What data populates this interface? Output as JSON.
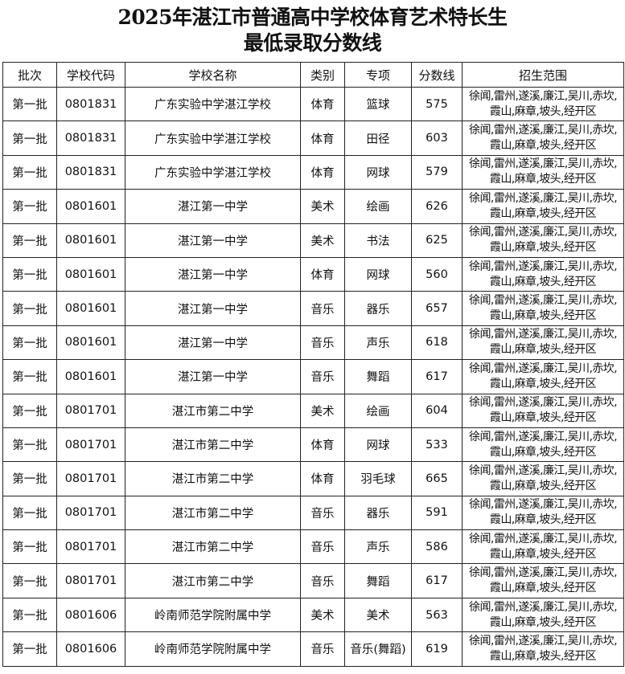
{
  "title_line1": "2025年湛江市普通高中学校体育艺术特长生",
  "title_line2": "最低录取分数线",
  "headers": [
    "批次",
    "学校代码",
    "学校名称",
    "类别",
    "专项",
    "分数线",
    "招生范围"
  ],
  "rows": [
    [
      "第一批",
      "0801831",
      "广东实验中学湛江学校",
      "体育",
      "篮球",
      "575",
      "徐闻,雷州,遂溪,廉江,吴川,赤坎,霞山,麻章,坡头,经开区"
    ],
    [
      "第一批",
      "0801831",
      "广东实验中学湛江学校",
      "体育",
      "田径",
      "603",
      "徐闻,雷州,遂溪,廉江,吴川,赤坎,霞山,麻章,坡头,经开区"
    ],
    [
      "第一批",
      "0801831",
      "广东实验中学湛江学校",
      "体育",
      "网球",
      "579",
      "徐闻,雷州,遂溪,廉江,吴川,赤坎,霞山,麻章,坡头,经开区"
    ],
    [
      "第一批",
      "0801601",
      "湛江第一中学",
      "美术",
      "绘画",
      "626",
      "徐闻,雷州,遂溪,廉江,吴川,赤坎,霞山,麻章,坡头,经开区"
    ],
    [
      "第一批",
      "0801601",
      "湛江第一中学",
      "美术",
      "书法",
      "625",
      "徐闻,雷州,遂溪,廉江,吴川,赤坎,霞山,麻章,坡头,经开区"
    ],
    [
      "第一批",
      "0801601",
      "湛江第一中学",
      "体育",
      "网球",
      "560",
      "徐闻,雷州,遂溪,廉江,吴川,赤坎,霞山,麻章,坡头,经开区"
    ],
    [
      "第一批",
      "0801601",
      "湛江第一中学",
      "音乐",
      "器乐",
      "657",
      "徐闻,雷州,遂溪,廉江,吴川,赤坎,霞山,麻章,坡头,经开区"
    ],
    [
      "第一批",
      "0801601",
      "湛江第一中学",
      "音乐",
      "声乐",
      "618",
      "徐闻,雷州,遂溪,廉江,吴川,赤坎,霞山,麻章,坡头,经开区"
    ],
    [
      "第一批",
      "0801601",
      "湛江第一中学",
      "音乐",
      "舞蹈",
      "617",
      "徐闻,雷州,遂溪,廉江,吴川,赤坎,霞山,麻章,坡头,经开区"
    ],
    [
      "第一批",
      "0801701",
      "湛江市第二中学",
      "美术",
      "绘画",
      "604",
      "徐闻,雷州,遂溪,廉江,吴川,赤坎,霞山,麻章,坡头,经开区"
    ],
    [
      "第一批",
      "0801701",
      "湛江市第二中学",
      "体育",
      "网球",
      "533",
      "徐闻,雷州,遂溪,廉江,吴川,赤坎,霞山,麻章,坡头,经开区"
    ],
    [
      "第一批",
      "0801701",
      "湛江市第二中学",
      "体育",
      "羽毛球",
      "665",
      "徐闻,雷州,遂溪,廉江,吴川,赤坎,霞山,麻章,坡头,经开区"
    ],
    [
      "第一批",
      "0801701",
      "湛江市第二中学",
      "音乐",
      "器乐",
      "591",
      "徐闻,雷州,遂溪,廉江,吴川,赤坎,霞山,麻章,坡头,经开区"
    ],
    [
      "第一批",
      "0801701",
      "湛江市第二中学",
      "音乐",
      "声乐",
      "586",
      "徐闻,雷州,遂溪,廉江,吴川,赤坎,霞山,麻章,坡头,经开区"
    ],
    [
      "第一批",
      "0801701",
      "湛江市第二中学",
      "音乐",
      "舞蹈",
      "617",
      "徐闻,雷州,遂溪,廉江,吴川,赤坎,霞山,麻章,坡头,经开区"
    ],
    [
      "第一批",
      "0801606",
      "岭南师范学院附属中学",
      "美术",
      "美术",
      "563",
      "徐闻,雷州,遂溪,廉江,吴川,赤坎,霞山,麻章,坡头,经开区"
    ],
    [
      "第一批",
      "0801606",
      "岭南师范学院附属中学",
      "音乐",
      "音乐(舞蹈)",
      "619",
      "徐闻,雷州,遂溪,廉江,吴川,赤坎,霞山,麻章,坡头,经开区"
    ]
  ]
}
